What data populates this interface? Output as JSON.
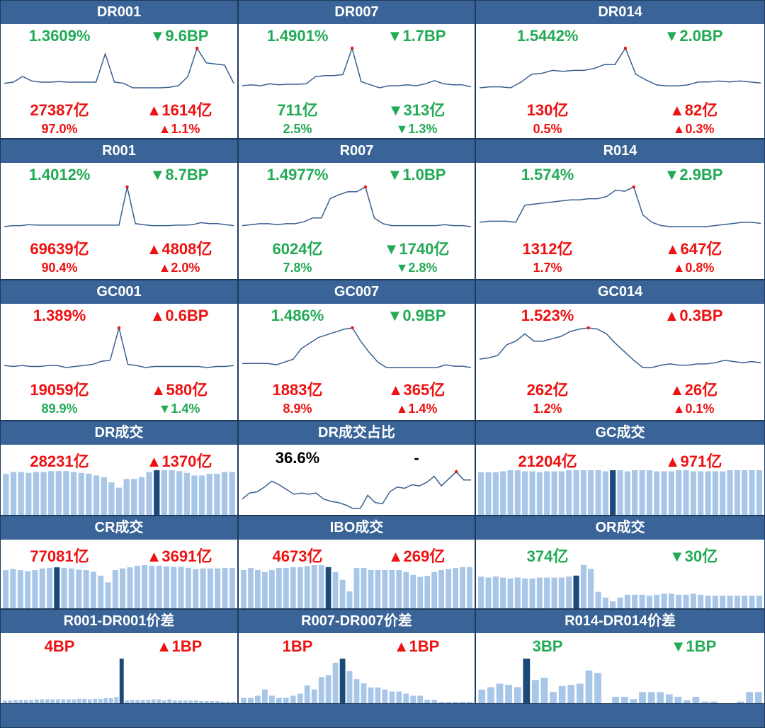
{
  "colors": {
    "header": "#3a6497",
    "up": "#ee1111",
    "down": "#22aa55",
    "line": "#3a5f8f",
    "bar": "#a8c6e8",
    "bar_hl": "#1c4a78",
    "peak": "#ee1111"
  },
  "symbols": {
    "up": "▲",
    "down": "▼"
  },
  "panels": [
    {
      "title": "DR001",
      "chart_type": "line",
      "stats": [
        {
          "text": "1.3609%",
          "dir": "down"
        },
        {
          "text": "9.6BP",
          "dir": "down",
          "arrow": true
        },
        {
          "text": "27387亿",
          "dir": "up"
        },
        {
          "text": "1614亿",
          "dir": "up",
          "arrow": true
        },
        {
          "text": "97.0%",
          "dir": "up"
        },
        {
          "text": "1.1%",
          "dir": "up",
          "arrow": true
        }
      ]
    },
    {
      "title": "DR007",
      "chart_type": "line",
      "stats": [
        {
          "text": "1.4901%",
          "dir": "down"
        },
        {
          "text": "1.7BP",
          "dir": "down",
          "arrow": true
        },
        {
          "text": "711亿",
          "dir": "down"
        },
        {
          "text": "313亿",
          "dir": "down",
          "arrow": true
        },
        {
          "text": "2.5%",
          "dir": "down"
        },
        {
          "text": "1.3%",
          "dir": "down",
          "arrow": true
        }
      ]
    },
    {
      "title": "DR014",
      "chart_type": "line",
      "stats": [
        {
          "text": "1.5442%",
          "dir": "down"
        },
        {
          "text": "2.0BP",
          "dir": "down",
          "arrow": true
        },
        {
          "text": "130亿",
          "dir": "up"
        },
        {
          "text": "82亿",
          "dir": "up",
          "arrow": true
        },
        {
          "text": "0.5%",
          "dir": "up"
        },
        {
          "text": "0.3%",
          "dir": "up",
          "arrow": true
        }
      ]
    },
    {
      "title": "R001",
      "chart_type": "line",
      "stats": [
        {
          "text": "1.4012%",
          "dir": "down"
        },
        {
          "text": "8.7BP",
          "dir": "down",
          "arrow": true
        },
        {
          "text": "69639亿",
          "dir": "up"
        },
        {
          "text": "4808亿",
          "dir": "up",
          "arrow": true
        },
        {
          "text": "90.4%",
          "dir": "up"
        },
        {
          "text": "2.0%",
          "dir": "up",
          "arrow": true
        }
      ]
    },
    {
      "title": "R007",
      "chart_type": "line",
      "stats": [
        {
          "text": "1.4977%",
          "dir": "down"
        },
        {
          "text": "1.0BP",
          "dir": "down",
          "arrow": true
        },
        {
          "text": "6024亿",
          "dir": "down"
        },
        {
          "text": "1740亿",
          "dir": "down",
          "arrow": true
        },
        {
          "text": "7.8%",
          "dir": "down"
        },
        {
          "text": "2.8%",
          "dir": "down",
          "arrow": true
        }
      ]
    },
    {
      "title": "R014",
      "chart_type": "line",
      "stats": [
        {
          "text": "1.574%",
          "dir": "down"
        },
        {
          "text": "2.9BP",
          "dir": "down",
          "arrow": true
        },
        {
          "text": "1312亿",
          "dir": "up"
        },
        {
          "text": "647亿",
          "dir": "up",
          "arrow": true
        },
        {
          "text": "1.7%",
          "dir": "up"
        },
        {
          "text": "0.8%",
          "dir": "up",
          "arrow": true
        }
      ]
    },
    {
      "title": "GC001",
      "chart_type": "line",
      "stats": [
        {
          "text": "1.389%",
          "dir": "up"
        },
        {
          "text": "0.6BP",
          "dir": "up",
          "arrow": true
        },
        {
          "text": "19059亿",
          "dir": "up"
        },
        {
          "text": "580亿",
          "dir": "up",
          "arrow": true
        },
        {
          "text": "89.9%",
          "dir": "down"
        },
        {
          "text": "1.4%",
          "dir": "down",
          "arrow": true
        }
      ]
    },
    {
      "title": "GC007",
      "chart_type": "line",
      "stats": [
        {
          "text": "1.486%",
          "dir": "down"
        },
        {
          "text": "0.9BP",
          "dir": "down",
          "arrow": true
        },
        {
          "text": "1883亿",
          "dir": "up"
        },
        {
          "text": "365亿",
          "dir": "up",
          "arrow": true
        },
        {
          "text": "8.9%",
          "dir": "up"
        },
        {
          "text": "1.4%",
          "dir": "up",
          "arrow": true
        }
      ]
    },
    {
      "title": "GC014",
      "chart_type": "line",
      "stats": [
        {
          "text": "1.523%",
          "dir": "up"
        },
        {
          "text": "0.3BP",
          "dir": "up",
          "arrow": true
        },
        {
          "text": "262亿",
          "dir": "up"
        },
        {
          "text": "26亿",
          "dir": "up",
          "arrow": true
        },
        {
          "text": "1.2%",
          "dir": "up"
        },
        {
          "text": "0.1%",
          "dir": "up",
          "arrow": true
        }
      ]
    },
    {
      "title": "DR成交",
      "chart_type": "bar",
      "stats": [
        {
          "text": "28231亿",
          "dir": "up"
        },
        {
          "text": "1370亿",
          "dir": "up",
          "arrow": true
        }
      ]
    },
    {
      "title": "DR成交占比",
      "chart_type": "line",
      "stats": [
        {
          "text": "36.6%",
          "dir": "neutral"
        },
        {
          "text": "-",
          "dir": "neutral"
        }
      ]
    },
    {
      "title": "GC成交",
      "chart_type": "bar",
      "stats": [
        {
          "text": "21204亿",
          "dir": "up"
        },
        {
          "text": "971亿",
          "dir": "up",
          "arrow": true
        }
      ]
    },
    {
      "title": "CR成交",
      "chart_type": "bar",
      "stats": [
        {
          "text": "77081亿",
          "dir": "up"
        },
        {
          "text": "3691亿",
          "dir": "up",
          "arrow": true
        }
      ]
    },
    {
      "title": "IBO成交",
      "chart_type": "bar",
      "stats": [
        {
          "text": "4673亿",
          "dir": "up"
        },
        {
          "text": "269亿",
          "dir": "up",
          "arrow": true
        }
      ]
    },
    {
      "title": "OR成交",
      "chart_type": "bar",
      "stats": [
        {
          "text": "374亿",
          "dir": "down"
        },
        {
          "text": "30亿",
          "dir": "down",
          "arrow": true
        }
      ]
    },
    {
      "title": "R001-DR001价差",
      "chart_type": "bar",
      "stats": [
        {
          "text": "4BP",
          "dir": "up"
        },
        {
          "text": "1BP",
          "dir": "up",
          "arrow": true
        }
      ]
    },
    {
      "title": "R007-DR007价差",
      "chart_type": "bar",
      "stats": [
        {
          "text": "1BP",
          "dir": "up"
        },
        {
          "text": "1BP",
          "dir": "up",
          "arrow": true
        }
      ]
    },
    {
      "title": "R014-DR014价差",
      "chart_type": "bar",
      "stats": [
        {
          "text": "3BP",
          "dir": "down"
        },
        {
          "text": "1BP",
          "dir": "down",
          "arrow": true
        }
      ]
    }
  ],
  "chart_data": [
    {
      "type": "line",
      "title": "DR001",
      "values": [
        14,
        15,
        20,
        16,
        15,
        15,
        15.5,
        15,
        15,
        15,
        15,
        40,
        15,
        14,
        10,
        10,
        10,
        10,
        10.5,
        12,
        20,
        45,
        32,
        31,
        30,
        14
      ],
      "peak_index": 21
    },
    {
      "type": "line",
      "title": "DR007",
      "values": [
        8,
        9,
        8,
        10,
        9,
        9.5,
        9.5,
        10,
        17,
        18,
        18,
        19,
        45,
        12,
        9,
        6,
        8,
        8,
        9,
        8,
        10,
        13,
        10,
        9,
        9,
        7
      ],
      "peak_index": 12
    },
    {
      "type": "line",
      "title": "DR014",
      "values": [
        4,
        5,
        5,
        4,
        10,
        18,
        19,
        22,
        21,
        22,
        22,
        24,
        28,
        28,
        45,
        18,
        12,
        7,
        6,
        6,
        7,
        10,
        10,
        11,
        10,
        11,
        10,
        9
      ],
      "peak_index": 14
    },
    {
      "type": "line",
      "title": "R001",
      "values": [
        5,
        6,
        6,
        7,
        6.5,
        6.5,
        6.5,
        6.5,
        6.5,
        6.5,
        6.5,
        6.5,
        6.5,
        6.5,
        6.5,
        45,
        8,
        7,
        6,
        6,
        6,
        6.5,
        6.5,
        7,
        9,
        8,
        8,
        7,
        6
      ],
      "peak_index": 15
    },
    {
      "type": "line",
      "title": "R007",
      "values": [
        10,
        11,
        12,
        12,
        11,
        12,
        12,
        14,
        18,
        18,
        38,
        42,
        45,
        45,
        50,
        18,
        12,
        10,
        10,
        10,
        10,
        10,
        10,
        11,
        10,
        10,
        9
      ],
      "peak_index": 14
    },
    {
      "type": "line",
      "title": "R014",
      "values": [
        12,
        13,
        13,
        13,
        12,
        28,
        29,
        30,
        31,
        32,
        33,
        33,
        34,
        34,
        36,
        42,
        41,
        45,
        19,
        12,
        9,
        8,
        8,
        8,
        8,
        8,
        9,
        10,
        11,
        12,
        12,
        11
      ],
      "peak_index": 17
    },
    {
      "type": "line",
      "title": "GC001",
      "values": [
        9,
        8,
        9,
        8,
        8,
        9,
        9,
        7,
        8,
        9,
        10,
        13,
        14,
        45,
        10,
        9,
        7,
        8,
        8,
        8,
        8,
        8,
        8,
        7,
        8,
        8,
        9
      ],
      "peak_index": 13
    },
    {
      "type": "line",
      "title": "GC007",
      "values": [
        11,
        11,
        11,
        11,
        10,
        12,
        14,
        22,
        26,
        30,
        32,
        34,
        36,
        37,
        27,
        19,
        12,
        8,
        8,
        8,
        8,
        8,
        8,
        8,
        10,
        9,
        9,
        8
      ],
      "peak_index": 13
    },
    {
      "type": "line",
      "title": "GC014",
      "values": [
        15,
        16,
        18,
        27,
        30,
        36,
        30,
        30,
        32,
        34,
        38,
        40,
        41,
        40,
        36,
        28,
        21,
        14,
        8,
        8,
        10,
        11,
        10,
        10,
        11,
        11,
        12,
        14,
        13,
        12,
        13,
        12
      ],
      "peak_index": 12
    },
    {
      "type": "bar",
      "title": "DR成交",
      "values": [
        24,
        25,
        25,
        24.5,
        25,
        25,
        25.5,
        25.5,
        25.5,
        25,
        24.5,
        24,
        23,
        22,
        19,
        16,
        21,
        21,
        22,
        25,
        26,
        26,
        26,
        25.5,
        24.5,
        23,
        23,
        24,
        24,
        25,
        25
      ],
      "highlight_index": 20
    },
    {
      "type": "line",
      "title": "DR成交占比",
      "values": [
        18,
        23,
        24,
        28,
        33,
        30,
        26,
        22,
        23,
        22,
        23,
        18,
        16,
        15,
        13,
        10,
        10,
        21,
        15,
        14,
        24,
        28,
        27,
        30,
        29,
        32,
        37,
        29,
        35,
        41,
        34,
        34
      ],
      "peak_index": 29
    },
    {
      "type": "bar",
      "title": "GC成交",
      "values": [
        21,
        21,
        21,
        21.5,
        22,
        22,
        21.5,
        21.5,
        21,
        21.5,
        21.5,
        21.5,
        22,
        22,
        22,
        22,
        22,
        21.5,
        22,
        22,
        21.5,
        22,
        22,
        22,
        21.5,
        21.5,
        21.5,
        22,
        22,
        21.5,
        21.5,
        21.5,
        21.5,
        21.5,
        22,
        22,
        22,
        22,
        22
      ],
      "highlight_index": 18
    },
    {
      "type": "bar",
      "title": "CR成交",
      "values": [
        70,
        72,
        70,
        68,
        70,
        73,
        74,
        75,
        74,
        73,
        71,
        70,
        67,
        60,
        48,
        70,
        73,
        75,
        78,
        79,
        78,
        78,
        77,
        76,
        76,
        74,
        72,
        73,
        73,
        73,
        74,
        74
      ],
      "highlight_index": 7
    },
    {
      "type": "bar",
      "title": "IBO成交",
      "values": [
        40,
        42,
        40,
        38,
        40,
        42,
        42,
        43,
        43,
        44,
        45,
        45,
        43,
        38,
        30,
        18,
        42,
        42,
        40,
        40,
        40,
        40,
        40,
        38,
        35,
        33,
        34,
        38,
        40,
        41,
        42,
        43,
        43
      ],
      "highlight_index": 12
    },
    {
      "type": "bar",
      "title": "OR成交",
      "values": [
        340,
        330,
        340,
        330,
        320,
        330,
        320,
        320,
        330,
        330,
        330,
        330,
        340,
        350,
        460,
        420,
        180,
        120,
        80,
        120,
        150,
        150,
        150,
        140,
        150,
        160,
        160,
        150,
        150,
        160,
        150,
        140,
        140,
        140,
        140,
        140,
        140,
        140,
        140
      ],
      "highlight_index": 13
    },
    {
      "type": "bar",
      "title": "R001-DR001价差",
      "values": [
        0.3,
        0.3,
        0.35,
        0.35,
        0.35,
        0.35,
        0.4,
        0.4,
        0.4,
        0.4,
        0.4,
        0.4,
        0.4,
        0.4,
        0.45,
        0.45,
        0.4,
        0.45,
        0.45,
        0.5,
        0.5,
        0.6,
        4,
        0.3,
        0.35,
        0.35,
        0.35,
        0.35,
        0.4,
        0.4,
        0.3,
        0.4,
        0.3,
        0.3,
        0.3,
        0.3,
        0.3,
        0.25,
        0.25,
        0.25,
        0.25,
        0.2,
        0.2,
        0.2
      ],
      "highlight_index": 22
    },
    {
      "type": "bar",
      "title": "R007-DR007价差",
      "values": [
        0.15,
        0.15,
        0.2,
        0.35,
        0.2,
        0.15,
        0.15,
        0.2,
        0.25,
        0.45,
        0.35,
        0.65,
        0.7,
        1,
        1.1,
        0.8,
        0.6,
        0.5,
        0.4,
        0.4,
        0.35,
        0.3,
        0.3,
        0.25,
        0.2,
        0.2,
        0.1,
        0.1,
        0.05,
        0.05,
        0.05,
        0.05,
        0.05
      ],
      "highlight_index": 14
    },
    {
      "type": "bar",
      "title": "R014-DR014价差",
      "values": [
        0.6,
        0.7,
        0.85,
        0.8,
        0.7,
        1.9,
        1,
        1.1,
        0.5,
        0.75,
        0.8,
        0.85,
        1.4,
        1.3,
        0,
        0.3,
        0.3,
        0.2,
        0.5,
        0.5,
        0.5,
        0.4,
        0.3,
        0.15,
        0.3,
        0.1,
        0.1,
        0,
        0,
        0.1,
        0.5,
        0.5
      ],
      "highlight_index": 5
    }
  ]
}
